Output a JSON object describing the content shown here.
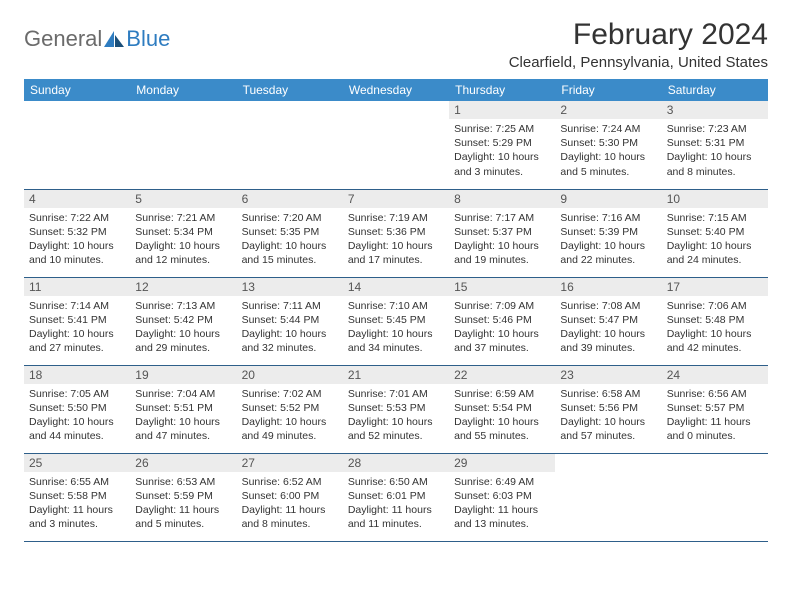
{
  "branding": {
    "word1": "General",
    "word2": "Blue"
  },
  "header": {
    "title": "February 2024",
    "location": "Clearfield, Pennsylvania, United States"
  },
  "style": {
    "header_bg": "#3b8bc9",
    "header_fg": "#ffffff",
    "daynum_bg": "#ececec",
    "rule_color": "#2e5f8a",
    "logo_gray": "#6b6b6b",
    "logo_blue": "#2e7cc0",
    "text_color": "#333333"
  },
  "calendar": {
    "day_headers": [
      "Sunday",
      "Monday",
      "Tuesday",
      "Wednesday",
      "Thursday",
      "Friday",
      "Saturday"
    ],
    "first_weekday_index": 4,
    "days": [
      {
        "n": 1,
        "sunrise": "7:25 AM",
        "sunset": "5:29 PM",
        "daylight": "10 hours and 3 minutes."
      },
      {
        "n": 2,
        "sunrise": "7:24 AM",
        "sunset": "5:30 PM",
        "daylight": "10 hours and 5 minutes."
      },
      {
        "n": 3,
        "sunrise": "7:23 AM",
        "sunset": "5:31 PM",
        "daylight": "10 hours and 8 minutes."
      },
      {
        "n": 4,
        "sunrise": "7:22 AM",
        "sunset": "5:32 PM",
        "daylight": "10 hours and 10 minutes."
      },
      {
        "n": 5,
        "sunrise": "7:21 AM",
        "sunset": "5:34 PM",
        "daylight": "10 hours and 12 minutes."
      },
      {
        "n": 6,
        "sunrise": "7:20 AM",
        "sunset": "5:35 PM",
        "daylight": "10 hours and 15 minutes."
      },
      {
        "n": 7,
        "sunrise": "7:19 AM",
        "sunset": "5:36 PM",
        "daylight": "10 hours and 17 minutes."
      },
      {
        "n": 8,
        "sunrise": "7:17 AM",
        "sunset": "5:37 PM",
        "daylight": "10 hours and 19 minutes."
      },
      {
        "n": 9,
        "sunrise": "7:16 AM",
        "sunset": "5:39 PM",
        "daylight": "10 hours and 22 minutes."
      },
      {
        "n": 10,
        "sunrise": "7:15 AM",
        "sunset": "5:40 PM",
        "daylight": "10 hours and 24 minutes."
      },
      {
        "n": 11,
        "sunrise": "7:14 AM",
        "sunset": "5:41 PM",
        "daylight": "10 hours and 27 minutes."
      },
      {
        "n": 12,
        "sunrise": "7:13 AM",
        "sunset": "5:42 PM",
        "daylight": "10 hours and 29 minutes."
      },
      {
        "n": 13,
        "sunrise": "7:11 AM",
        "sunset": "5:44 PM",
        "daylight": "10 hours and 32 minutes."
      },
      {
        "n": 14,
        "sunrise": "7:10 AM",
        "sunset": "5:45 PM",
        "daylight": "10 hours and 34 minutes."
      },
      {
        "n": 15,
        "sunrise": "7:09 AM",
        "sunset": "5:46 PM",
        "daylight": "10 hours and 37 minutes."
      },
      {
        "n": 16,
        "sunrise": "7:08 AM",
        "sunset": "5:47 PM",
        "daylight": "10 hours and 39 minutes."
      },
      {
        "n": 17,
        "sunrise": "7:06 AM",
        "sunset": "5:48 PM",
        "daylight": "10 hours and 42 minutes."
      },
      {
        "n": 18,
        "sunrise": "7:05 AM",
        "sunset": "5:50 PM",
        "daylight": "10 hours and 44 minutes."
      },
      {
        "n": 19,
        "sunrise": "7:04 AM",
        "sunset": "5:51 PM",
        "daylight": "10 hours and 47 minutes."
      },
      {
        "n": 20,
        "sunrise": "7:02 AM",
        "sunset": "5:52 PM",
        "daylight": "10 hours and 49 minutes."
      },
      {
        "n": 21,
        "sunrise": "7:01 AM",
        "sunset": "5:53 PM",
        "daylight": "10 hours and 52 minutes."
      },
      {
        "n": 22,
        "sunrise": "6:59 AM",
        "sunset": "5:54 PM",
        "daylight": "10 hours and 55 minutes."
      },
      {
        "n": 23,
        "sunrise": "6:58 AM",
        "sunset": "5:56 PM",
        "daylight": "10 hours and 57 minutes."
      },
      {
        "n": 24,
        "sunrise": "6:56 AM",
        "sunset": "5:57 PM",
        "daylight": "11 hours and 0 minutes."
      },
      {
        "n": 25,
        "sunrise": "6:55 AM",
        "sunset": "5:58 PM",
        "daylight": "11 hours and 3 minutes."
      },
      {
        "n": 26,
        "sunrise": "6:53 AM",
        "sunset": "5:59 PM",
        "daylight": "11 hours and 5 minutes."
      },
      {
        "n": 27,
        "sunrise": "6:52 AM",
        "sunset": "6:00 PM",
        "daylight": "11 hours and 8 minutes."
      },
      {
        "n": 28,
        "sunrise": "6:50 AM",
        "sunset": "6:01 PM",
        "daylight": "11 hours and 11 minutes."
      },
      {
        "n": 29,
        "sunrise": "6:49 AM",
        "sunset": "6:03 PM",
        "daylight": "11 hours and 13 minutes."
      }
    ],
    "labels": {
      "sunrise": "Sunrise:",
      "sunset": "Sunset:",
      "daylight": "Daylight:"
    }
  }
}
